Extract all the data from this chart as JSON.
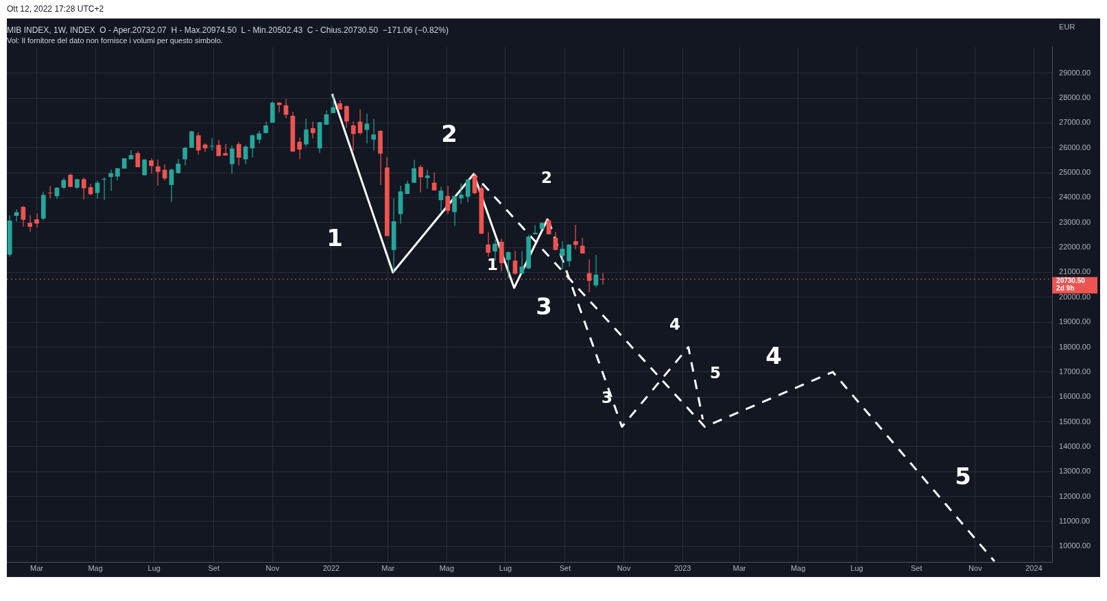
{
  "chart_data": {
    "type": "candlestick",
    "title": "MIB INDEX, 1W, INDEX  O - Aper.20732.07  H - Max.20974.50  L - Min.20502.43  C - Chius.20730.50  −171.06 (−0.82%)",
    "subtitle": "Vol: Il fornitore del dato non fornisce i volumi per questo simbolo.",
    "ylabel": "EUR",
    "x": [
      "2021-02-01",
      "2021-02-08",
      "2021-02-15",
      "2021-02-22",
      "2021-03-01",
      "2021-03-08",
      "2021-03-15",
      "2021-03-22",
      "2021-03-29",
      "2021-04-05",
      "2021-04-12",
      "2021-04-19",
      "2021-04-26",
      "2021-05-03",
      "2021-05-10",
      "2021-05-17",
      "2021-05-24",
      "2021-05-31",
      "2021-06-07",
      "2021-06-14",
      "2021-06-21",
      "2021-06-28",
      "2021-07-05",
      "2021-07-12",
      "2021-07-19",
      "2021-07-26",
      "2021-08-02",
      "2021-08-09",
      "2021-08-16",
      "2021-08-23",
      "2021-08-30",
      "2021-09-06",
      "2021-09-13",
      "2021-09-20",
      "2021-09-27",
      "2021-10-04",
      "2021-10-11",
      "2021-10-18",
      "2021-10-25",
      "2021-11-01",
      "2021-11-08",
      "2021-11-15",
      "2021-11-22",
      "2021-11-29",
      "2021-12-06",
      "2021-12-13",
      "2021-12-20",
      "2021-12-27",
      "2022-01-03",
      "2022-01-10",
      "2022-01-17",
      "2022-01-24",
      "2022-01-31",
      "2022-02-07",
      "2022-02-14",
      "2022-02-21",
      "2022-02-28",
      "2022-03-07",
      "2022-03-14",
      "2022-03-21",
      "2022-03-28",
      "2022-04-04",
      "2022-04-11",
      "2022-04-18",
      "2022-04-25",
      "2022-05-02",
      "2022-05-09",
      "2022-05-16",
      "2022-05-23",
      "2022-05-30",
      "2022-06-06",
      "2022-06-13",
      "2022-06-20",
      "2022-06-27",
      "2022-07-04",
      "2022-07-11",
      "2022-07-18",
      "2022-07-25",
      "2022-08-01",
      "2022-08-08",
      "2022-08-15",
      "2022-08-22",
      "2022-08-29",
      "2022-09-05",
      "2022-09-12",
      "2022-09-19",
      "2022-09-26",
      "2022-10-03",
      "2022-10-10"
    ],
    "ohlc": [
      [
        21710,
        23290,
        21640,
        23080
      ],
      [
        23270,
        23530,
        23050,
        23420
      ],
      [
        23630,
        23660,
        22840,
        23110
      ],
      [
        22990,
        23290,
        22630,
        22830
      ],
      [
        23130,
        23370,
        22800,
        22960
      ],
      [
        23160,
        24240,
        23090,
        24110
      ],
      [
        24200,
        24470,
        23980,
        24180
      ],
      [
        24060,
        24420,
        23950,
        24400
      ],
      [
        24400,
        24790,
        24350,
        24710
      ],
      [
        24920,
        24960,
        24430,
        24430
      ],
      [
        24400,
        24760,
        24350,
        24740
      ],
      [
        24740,
        24820,
        23930,
        24380
      ],
      [
        24420,
        24550,
        24090,
        24140
      ],
      [
        24190,
        24680,
        23960,
        24600
      ],
      [
        24720,
        24820,
        23900,
        24750
      ],
      [
        24830,
        25130,
        24270,
        24980
      ],
      [
        24850,
        25180,
        24690,
        25180
      ],
      [
        25170,
        25580,
        25170,
        25580
      ],
      [
        25540,
        25920,
        25540,
        25710
      ],
      [
        25790,
        25860,
        25220,
        25220
      ],
      [
        24900,
        25530,
        24900,
        25530
      ],
      [
        25500,
        25580,
        24960,
        25270
      ],
      [
        25260,
        25530,
        24480,
        25040
      ],
      [
        25120,
        25340,
        24690,
        24770
      ],
      [
        24510,
        25160,
        23830,
        25130
      ],
      [
        24980,
        25550,
        24980,
        25370
      ],
      [
        25540,
        26050,
        25300,
        26000
      ],
      [
        26000,
        26680,
        26000,
        26660
      ],
      [
        26500,
        26610,
        25720,
        25900
      ],
      [
        26130,
        26180,
        25830,
        25980
      ],
      [
        26070,
        26390,
        25900,
        26080
      ],
      [
        26120,
        26320,
        25670,
        25670
      ],
      [
        25790,
        26160,
        25690,
        25690
      ],
      [
        25350,
        26100,
        24960,
        25970
      ],
      [
        26150,
        26240,
        25300,
        25610
      ],
      [
        25540,
        26110,
        25350,
        26050
      ],
      [
        25980,
        26550,
        25610,
        26500
      ],
      [
        26330,
        26680,
        26170,
        26580
      ],
      [
        26590,
        27050,
        26590,
        26900
      ],
      [
        27010,
        27870,
        27010,
        27820
      ],
      [
        27820,
        27840,
        27430,
        27720
      ],
      [
        27710,
        27970,
        27190,
        27330
      ],
      [
        27290,
        27450,
        25850,
        25850
      ],
      [
        26240,
        26420,
        25540,
        25930
      ],
      [
        26140,
        27180,
        26060,
        26740
      ],
      [
        26790,
        27050,
        26380,
        26590
      ],
      [
        25980,
        27030,
        25800,
        27030
      ],
      [
        26930,
        27500,
        26930,
        27340
      ],
      [
        27400,
        28190,
        27400,
        27630
      ],
      [
        27790,
        27920,
        27540,
        27540
      ],
      [
        27680,
        27710,
        26800,
        27060
      ],
      [
        26900,
        27050,
        25880,
        26560
      ],
      [
        27050,
        27550,
        26540,
        26590
      ],
      [
        26720,
        27370,
        26170,
        26970
      ],
      [
        26330,
        27160,
        25900,
        26540
      ],
      [
        26680,
        26710,
        24510,
        25770
      ],
      [
        25210,
        25630,
        22460,
        22460
      ],
      [
        21900,
        23970,
        21000,
        23050
      ],
      [
        23340,
        24480,
        22950,
        24250
      ],
      [
        24150,
        24680,
        24150,
        24560
      ],
      [
        24600,
        25520,
        24600,
        25180
      ],
      [
        25230,
        25310,
        24210,
        24820
      ],
      [
        24790,
        25120,
        24360,
        24890
      ],
      [
        24600,
        25020,
        24290,
        24290
      ],
      [
        23900,
        24440,
        23440,
        24280
      ],
      [
        24070,
        24470,
        23340,
        23470
      ],
      [
        23420,
        24070,
        22870,
        24070
      ],
      [
        23970,
        24570,
        23750,
        24120
      ],
      [
        24040,
        24730,
        23810,
        24730
      ],
      [
        24880,
        24970,
        24130,
        24180
      ],
      [
        24390,
        24500,
        22550,
        22550
      ],
      [
        22120,
        22620,
        21630,
        21790
      ],
      [
        21840,
        22310,
        21470,
        22150
      ],
      [
        22230,
        22360,
        21050,
        21370
      ],
      [
        21500,
        21850,
        20760,
        21810
      ],
      [
        21470,
        21860,
        20900,
        20950
      ],
      [
        20950,
        21860,
        20950,
        21230
      ],
      [
        21160,
        22520,
        21130,
        22440
      ],
      [
        22530,
        22900,
        22530,
        22590
      ],
      [
        22740,
        23000,
        22740,
        22990
      ],
      [
        23080,
        23130,
        22530,
        22530
      ],
      [
        22390,
        22620,
        21900,
        21900
      ],
      [
        21660,
        22250,
        21130,
        21950
      ],
      [
        21450,
        22120,
        21230,
        22120
      ],
      [
        22250,
        22910,
        21920,
        22100
      ],
      [
        22070,
        22390,
        21760,
        21760
      ],
      [
        20970,
        21520,
        20210,
        20660
      ],
      [
        20480,
        21700,
        20400,
        20910
      ],
      [
        20732.07,
        20974.5,
        20502.43,
        20730.5
      ]
    ],
    "series": [
      {
        "type": "line",
        "color": "#ffffff",
        "line_style": "solid",
        "x": [
          "2022-01-02",
          "2022-03-06",
          "2022-05-29",
          "2022-07-10",
          "2022-08-14"
        ],
        "values": [
          28160,
          21000,
          24950,
          20380,
          23160
        ]
      },
      {
        "type": "line",
        "color": "#ffffff",
        "line_style": "dashed",
        "x": [
          "2022-08-14",
          "2022-10-30",
          "2023-01-07",
          "2023-01-22"
        ],
        "values": [
          23160,
          14800,
          18000,
          15100
        ]
      },
      {
        "type": "line",
        "color": "#ffffff",
        "line_style": "dashed",
        "x": [
          "2022-05-29",
          "2023-01-24",
          "2023-06-06",
          "2023-11-21"
        ],
        "values": [
          24950,
          14800,
          17000,
          9400
        ]
      }
    ],
    "xlim": [
      "2021-01-29",
      "2024-01-20"
    ],
    "xticks": [
      {
        "value": "2021-03-01",
        "label": "Mar"
      },
      {
        "value": "2021-05-01",
        "label": "Mag"
      },
      {
        "value": "2021-07-01",
        "label": "Lug"
      },
      {
        "value": "2021-09-01",
        "label": "Set"
      },
      {
        "value": "2021-11-01",
        "label": "Nov"
      },
      {
        "value": "2022-01-01",
        "label": "2022"
      },
      {
        "value": "2022-03-01",
        "label": "Mar"
      },
      {
        "value": "2022-05-01",
        "label": "Mag"
      },
      {
        "value": "2022-07-01",
        "label": "Lug"
      },
      {
        "value": "2022-09-01",
        "label": "Set"
      },
      {
        "value": "2022-11-01",
        "label": "Nov"
      },
      {
        "value": "2023-01-01",
        "label": "2023"
      },
      {
        "value": "2023-03-01",
        "label": "Mar"
      },
      {
        "value": "2023-05-01",
        "label": "Mag"
      },
      {
        "value": "2023-07-01",
        "label": "Lug"
      },
      {
        "value": "2023-09-01",
        "label": "Set"
      },
      {
        "value": "2023-11-01",
        "label": "Nov"
      },
      {
        "value": "2024-01-01",
        "label": "2024"
      }
    ],
    "ylim": [
      9350,
      30050
    ],
    "yticks": [
      {
        "value": 10000,
        "label": "10000.00"
      },
      {
        "value": 11000,
        "label": "11000.00"
      },
      {
        "value": 12000,
        "label": "12000.00"
      },
      {
        "value": 13000,
        "label": "13000.00"
      },
      {
        "value": 14000,
        "label": "14000.00"
      },
      {
        "value": 15000,
        "label": "15000.00"
      },
      {
        "value": 16000,
        "label": "16000.00"
      },
      {
        "value": 17000,
        "label": "17000.00"
      },
      {
        "value": 18000,
        "label": "18000.00"
      },
      {
        "value": 19000,
        "label": "19000.00"
      },
      {
        "value": 20000,
        "label": "20000.00"
      },
      {
        "value": 21000,
        "label": "21000.00"
      },
      {
        "value": 22000,
        "label": "22000.00"
      },
      {
        "value": 23000,
        "label": "23000.00"
      },
      {
        "value": 24000,
        "label": "24000.00"
      },
      {
        "value": 25000,
        "label": "25000.00"
      },
      {
        "value": 26000,
        "label": "26000.00"
      },
      {
        "value": 27000,
        "label": "27000.00"
      },
      {
        "value": 28000,
        "label": "28000.00"
      },
      {
        "value": 29000,
        "label": "29000.00"
      }
    ],
    "ref_lines": [
      {
        "axis": "y",
        "value": 20730.5,
        "label": "20730.50\n2d 9h",
        "color": "#ef5350",
        "line_style": "dotted"
      }
    ],
    "annotations": [
      "Ott 12, 2022 17:28 UTC+2",
      "1",
      "2",
      "3",
      "4",
      "5",
      "1",
      "2",
      "3",
      "4",
      "5"
    ],
    "grid": true,
    "legend": false
  }
}
